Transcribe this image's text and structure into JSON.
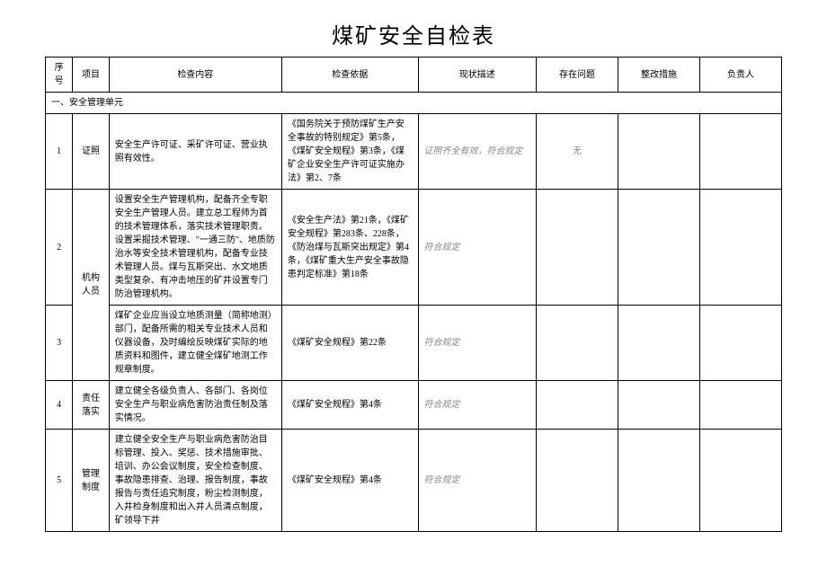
{
  "title": "煤矿安全自检表",
  "headers": {
    "seq": "序号",
    "item": "项目",
    "content": "检查内容",
    "basis": "检查依据",
    "status": "现状描述",
    "problem": "存在问题",
    "measure": "整改措施",
    "person": "负责人"
  },
  "section": "一、安全管理单元",
  "rows": [
    {
      "seq": "1",
      "item": "证照",
      "content": "安全生产许可证、采矿许可证、营业执照有效性。",
      "basis": "《国务院关于预防煤矿生产安全事故的特别规定》第5条，《煤矿安全规程》第3条，《煤矿企业安全生产许可证实施办法》第2、7条",
      "status": "证照齐全有效，符合规定",
      "problem": "无",
      "measure": "",
      "person": ""
    },
    {
      "seq": "2",
      "item": "机构人员",
      "item_rowspan": 2,
      "content": "设置安全生产管理机构，配备齐全专职安全生产管理人员。建立总工程师为首的技术管理体系，落实技术管理职责。设置采掘技术管理、\"一通三防\"、地质防治水等安全技术管理机构，配备专业技术管理人员。煤与瓦斯突出、水文地质类型复杂、有冲击地压的矿井设置专门防治管理机构。",
      "basis": "《安全生产法》第21条，《煤矿安全规程》第283条、228条，《防治煤与瓦斯突出规定》第4条，《煤矿重大生产安全事故隐患判定标准》第18条",
      "status": "符合规定",
      "problem": "",
      "measure": "",
      "person": ""
    },
    {
      "seq": "3",
      "content": "煤矿企业应当设立地质测量（简称地测）部门，配备所需的相关专业技术人员和仪器设备，及时编绘反映煤矿实际的地质资料和图件，建立健全煤矿地测工作规章制度。",
      "basis": "《煤矿安全规程》第22条",
      "status": "符合规定",
      "problem": "",
      "measure": "",
      "person": ""
    },
    {
      "seq": "4",
      "item": "责任落实",
      "content": "建立健全各级负责人、各部门、各岗位安全生产与职业病危害防治责任制及落实情况。",
      "basis": "《煤矿安全规程》第4条",
      "status": "符合规定",
      "problem": "",
      "measure": "",
      "person": ""
    },
    {
      "seq": "5",
      "item": "管理制度",
      "content": "建立健全安全生产与职业病危害防治目标管理、投入、奖惩、技术措施审批、培训、办公会议制度，安全检查制度、事故隐患排查、治理、报告制度，事故报告与责任追究制度，粉尘检测制度，入井检身制度和出入井人员清点制度，矿领导下井",
      "basis": "《煤矿安全规程》第4条",
      "status": "符合规定",
      "problem": "",
      "measure": "",
      "person": ""
    }
  ]
}
